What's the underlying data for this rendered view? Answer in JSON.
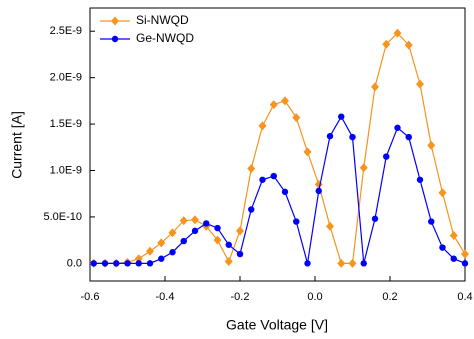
{
  "chart_data": {
    "type": "line",
    "xlabel": "Gate Voltage [V]",
    "ylabel": "Current [A]",
    "x": [
      -0.59,
      -0.56,
      -0.53,
      -0.5,
      -0.47,
      -0.44,
      -0.41,
      -0.38,
      -0.35,
      -0.32,
      -0.29,
      -0.26,
      -0.23,
      -0.2,
      -0.17,
      -0.14,
      -0.11,
      -0.08,
      -0.05,
      -0.02,
      0.01,
      0.04,
      0.07,
      0.1,
      0.13,
      0.16,
      0.19,
      0.22,
      0.25,
      0.28,
      0.31,
      0.34,
      0.37,
      0.4
    ],
    "series": [
      {
        "name": "Si-NWQD",
        "color": "#f7941d",
        "marker": "diamond",
        "values": [
          0,
          0,
          0,
          1e-11,
          5e-11,
          1.3e-10,
          2.2e-10,
          3.3e-10,
          4.6e-10,
          4.7e-10,
          4e-10,
          2.5e-10,
          2e-11,
          3.5e-10,
          1.02e-09,
          1.48e-09,
          1.71e-09,
          1.75e-09,
          1.57e-09,
          1.2e-09,
          8.5e-10,
          4e-10,
          0,
          0,
          1.03e-09,
          1.9e-09,
          2.36e-09,
          2.48e-09,
          2.35e-09,
          1.93e-09,
          1.27e-09,
          7.6e-10,
          3e-10,
          1e-10
        ]
      },
      {
        "name": "Ge-NWQD",
        "color": "#0000ff",
        "marker": "circle",
        "values": [
          0,
          0,
          0,
          0,
          0,
          0,
          5e-11,
          1.2e-10,
          2.4e-10,
          3.5e-10,
          4.3e-10,
          3.8e-10,
          2e-10,
          1e-10,
          5.8e-10,
          9e-10,
          9.4e-10,
          7.7e-10,
          4.5e-10,
          0,
          7.8e-10,
          1.37e-09,
          1.58e-09,
          1.36e-09,
          0,
          4.8e-10,
          1.15e-09,
          1.46e-09,
          1.36e-09,
          9e-10,
          4.5e-10,
          1.7e-10,
          5e-11,
          0
        ]
      }
    ],
    "xlim": [
      -0.6,
      0.4
    ],
    "xticks": [
      -0.6,
      -0.4,
      -0.2,
      {
        "value": 0,
        "label": "0.0"
      },
      0.2,
      0.4
    ],
    "ylim": [
      -1.9e-10,
      2.75e-09
    ],
    "yticks": [
      {
        "value": 0,
        "label": "0.0"
      },
      {
        "value": 5e-10,
        "label": "5.0E-10"
      },
      {
        "value": 1e-09,
        "label": "1.0E-9"
      },
      {
        "value": 1.5e-09,
        "label": "1.5E-9"
      },
      {
        "value": 2e-09,
        "label": "2.0E-9"
      },
      {
        "value": 2.5e-09,
        "label": "2.5E-9"
      }
    ],
    "legend": "upper left",
    "grid": false
  }
}
